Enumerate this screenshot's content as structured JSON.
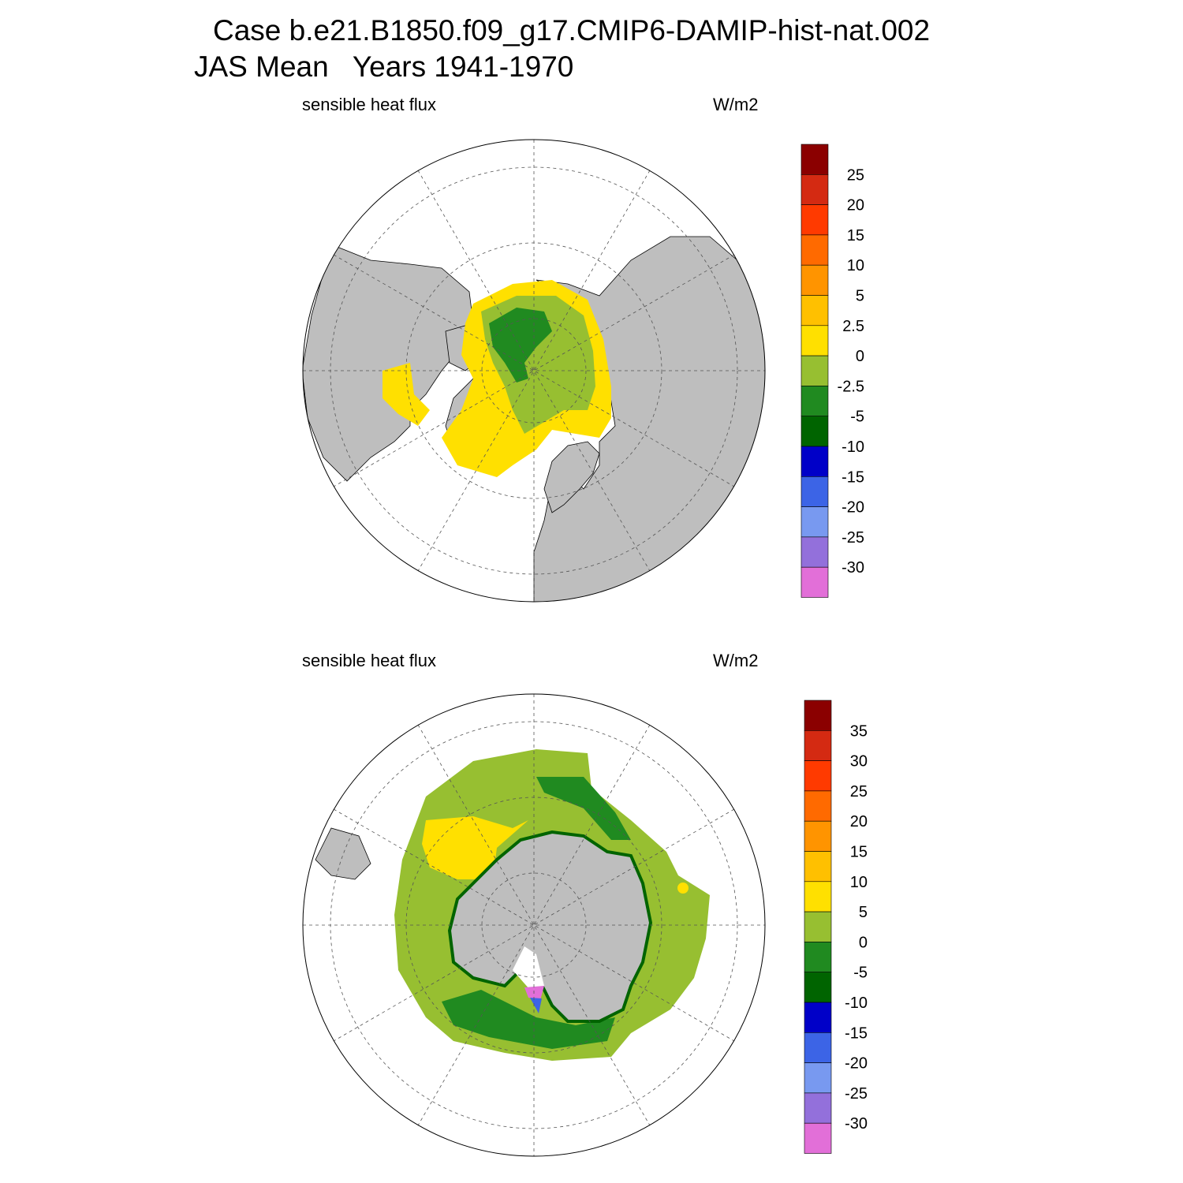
{
  "title": {
    "line1": "Case b.e21.B1850.f09_g17.CMIP6-DAMIP-hist-nat.002",
    "line2": "JAS Mean   Years 1941-1970"
  },
  "colors": {
    "land": "#bebebe",
    "ocean_masked": "#ffffff",
    "grid_line": "#555555"
  },
  "panels": [
    {
      "id": "north",
      "hemisphere": "Northern Hemisphere polar stereographic",
      "variable_label": "sensible heat flux",
      "units_label": "W/m2",
      "colorbar": {
        "labels": [
          "25",
          "20",
          "15",
          "10",
          "5",
          "2.5",
          "0",
          "-2.5",
          "-5",
          "-10",
          "-15",
          "-20",
          "-25",
          "-30"
        ],
        "colors": [
          "#8b0000",
          "#d42a12",
          "#ff3a00",
          "#ff6a00",
          "#ff9400",
          "#ffc000",
          "#ffe000",
          "#97bf31",
          "#208a20",
          "#006400",
          "#0000c8",
          "#3c64e6",
          "#7899f0",
          "#9370db",
          "#e26fd8"
        ]
      }
    },
    {
      "id": "south",
      "hemisphere": "Southern Hemisphere polar stereographic",
      "variable_label": "sensible heat flux",
      "units_label": "W/m2",
      "colorbar": {
        "labels": [
          "35",
          "30",
          "25",
          "20",
          "15",
          "10",
          "5",
          "0",
          "-5",
          "-10",
          "-15",
          "-20",
          "-25",
          "-30"
        ],
        "colors": [
          "#8b0000",
          "#d42a12",
          "#ff3a00",
          "#ff6a00",
          "#ff9400",
          "#ffc000",
          "#ffe000",
          "#97bf31",
          "#208a20",
          "#006400",
          "#0000c8",
          "#3c64e6",
          "#7899f0",
          "#9370db",
          "#e26fd8"
        ]
      }
    }
  ]
}
